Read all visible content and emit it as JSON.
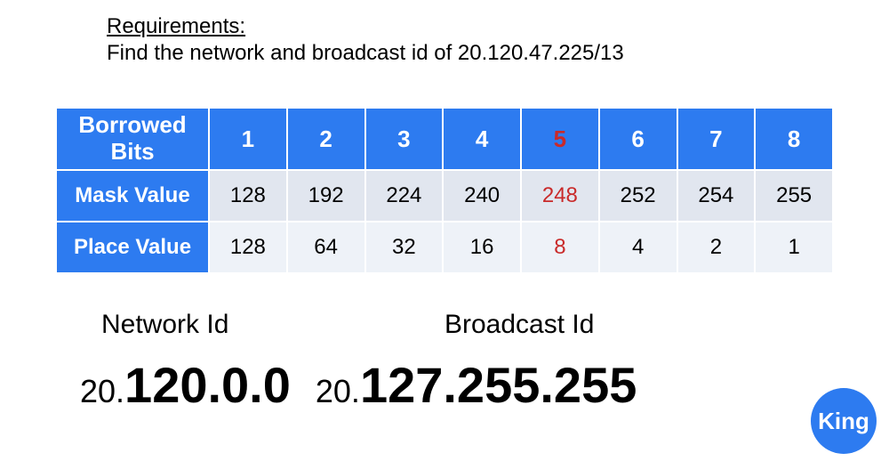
{
  "heading": {
    "label": "Requirements:",
    "text": "Find the network and broadcast id of 20.120.47.225/13"
  },
  "table": {
    "header_label_line1": "Borrowed",
    "header_label_line2": "Bits",
    "columns": [
      "1",
      "2",
      "3",
      "4",
      "5",
      "6",
      "7",
      "8"
    ],
    "highlight_col_index": 4,
    "rows": [
      {
        "label": "Mask Value",
        "cells": [
          "128",
          "192",
          "224",
          "240",
          "248",
          "252",
          "254",
          "255"
        ]
      },
      {
        "label": "Place Value",
        "cells": [
          "128",
          "64",
          "32",
          "16",
          "8",
          "4",
          "2",
          "1"
        ]
      }
    ],
    "colors": {
      "header_bg": "#2d7bf0",
      "header_fg": "#ffffff",
      "row1_bg": "#e1e6ef",
      "row2_bg": "#eef2f8",
      "highlight_fg": "#c92a2a",
      "border": "#ffffff"
    }
  },
  "answers": {
    "network_label": "Network Id",
    "broadcast_label": "Broadcast Id",
    "network": {
      "small_prefix": "20.",
      "big": "120.0.0"
    },
    "broadcast": {
      "small_prefix": "20.",
      "big": "127.255.255"
    }
  },
  "logo": {
    "text": "King",
    "bg": "#2d7bf0",
    "fg": "#ffffff"
  }
}
